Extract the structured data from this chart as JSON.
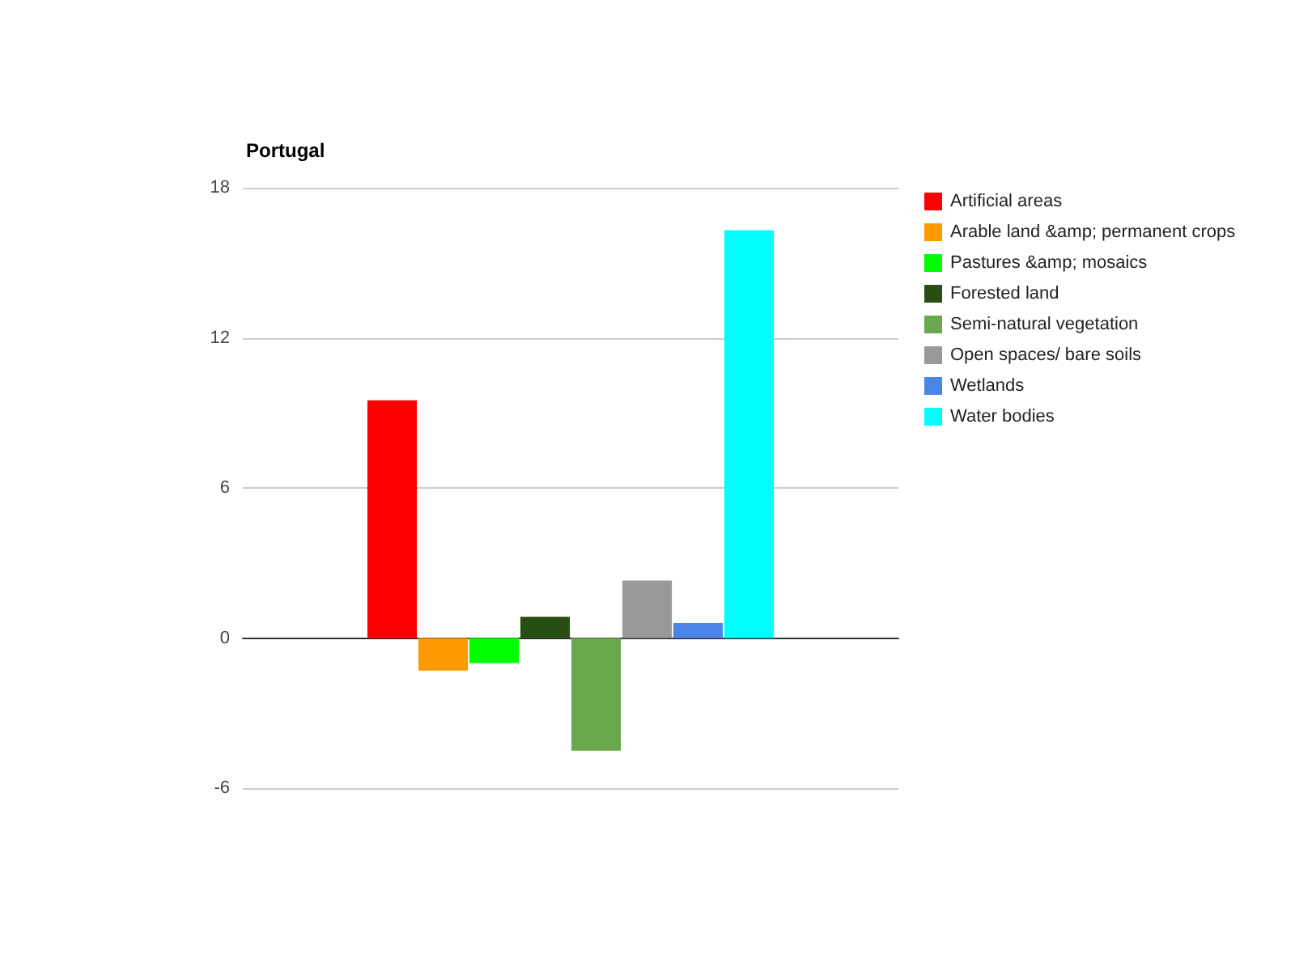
{
  "chart_data": {
    "type": "bar",
    "title": "Portugal",
    "categories": [
      null
    ],
    "series": [
      {
        "name": "Artificial areas",
        "color": "#ff0000",
        "values": [
          9.5
        ]
      },
      {
        "name": "Arable land &amp; permanent crops",
        "color": "#ff9900",
        "values": [
          -1.3
        ]
      },
      {
        "name": "Pastures &amp; mosaics",
        "color": "#00ff00",
        "values": [
          -1.0
        ]
      },
      {
        "name": "Forested land",
        "color": "#274e13",
        "values": [
          0.85
        ]
      },
      {
        "name": "Semi-natural vegetation",
        "color": "#6aa84f",
        "values": [
          -4.5
        ]
      },
      {
        "name": "Open spaces/ bare soils",
        "color": "#999999",
        "values": [
          2.3
        ]
      },
      {
        "name": "Wetlands",
        "color": "#4a86e8",
        "values": [
          0.6
        ]
      },
      {
        "name": "Water bodies",
        "color": "#00ffff",
        "values": [
          16.3
        ]
      }
    ],
    "ylim": [
      -6,
      18
    ],
    "yticks": [
      -6,
      0,
      6,
      12,
      18
    ],
    "grid": "y",
    "legend": "right"
  }
}
